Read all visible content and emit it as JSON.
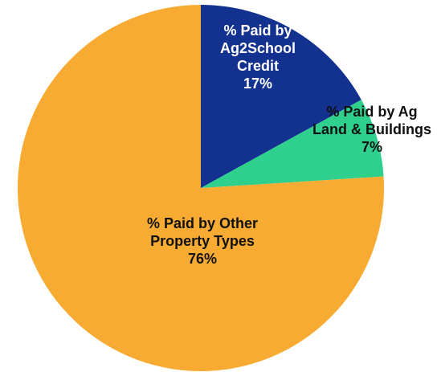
{
  "chart_data": {
    "type": "pie",
    "start_angle_deg": 0,
    "direction": "clockwise",
    "slices": [
      {
        "lines": [
          "% Paid by",
          "Ag2School",
          "Credit",
          "17%"
        ],
        "value": 17,
        "color": "#13318f",
        "text_color": "#ffffff"
      },
      {
        "lines": [
          "% Paid by Ag",
          "Land & Buildings",
          "7%"
        ],
        "value": 7,
        "color": "#2fd08d",
        "text_color": "#111111"
      },
      {
        "lines": [
          "% Paid by Other",
          "Property Types",
          "76%"
        ],
        "value": 76,
        "color": "#f8ab33",
        "text_color": "#111111"
      }
    ]
  }
}
